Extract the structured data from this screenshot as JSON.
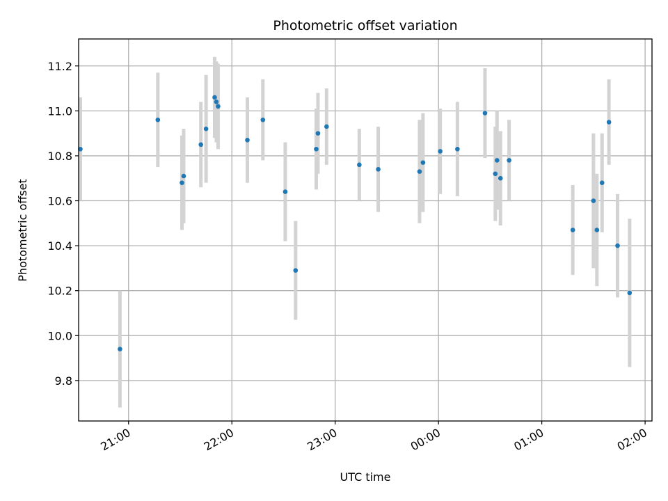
{
  "chart_data": {
    "type": "scatter",
    "title": "Photometric offset variation",
    "xlabel": "UTC time",
    "ylabel": "Photometric offset",
    "x_axis": "time",
    "x_ticks": [
      "21:00",
      "22:00",
      "23:00",
      "00:00",
      "01:00",
      "02:00"
    ],
    "y_ticks": [
      "9.8",
      "10.0",
      "10.2",
      "10.4",
      "10.6",
      "10.8",
      "11.0",
      "11.2"
    ],
    "xlim": [
      "20:31",
      "02:04"
    ],
    "ylim": [
      9.62,
      11.32
    ],
    "grid": true,
    "colors": {
      "marker": "#1f77b4",
      "error_bar": "#d3d3d3"
    },
    "series": [
      {
        "points": [
          {
            "x": "20:32",
            "y": 10.83,
            "err": 0.23
          },
          {
            "x": "20:55",
            "y": 9.94,
            "err": 0.26
          },
          {
            "x": "21:17",
            "y": 10.96,
            "err": 0.21
          },
          {
            "x": "21:31",
            "y": 10.68,
            "err": 0.21
          },
          {
            "x": "21:32",
            "y": 10.71,
            "err": 0.21
          },
          {
            "x": "21:42",
            "y": 10.85,
            "err": 0.19
          },
          {
            "x": "21:45",
            "y": 10.92,
            "err": 0.24
          },
          {
            "x": "21:50",
            "y": 11.06,
            "err": 0.18
          },
          {
            "x": "21:51",
            "y": 11.04,
            "err": 0.18
          },
          {
            "x": "21:52",
            "y": 11.02,
            "err": 0.19
          },
          {
            "x": "22:09",
            "y": 10.87,
            "err": 0.19
          },
          {
            "x": "22:18",
            "y": 10.96,
            "err": 0.18
          },
          {
            "x": "22:31",
            "y": 10.64,
            "err": 0.22
          },
          {
            "x": "22:37",
            "y": 10.29,
            "err": 0.22
          },
          {
            "x": "22:49",
            "y": 10.83,
            "err": 0.18
          },
          {
            "x": "22:50",
            "y": 10.9,
            "err": 0.18
          },
          {
            "x": "22:55",
            "y": 10.93,
            "err": 0.17
          },
          {
            "x": "23:14",
            "y": 10.76,
            "err": 0.16
          },
          {
            "x": "23:25",
            "y": 10.74,
            "err": 0.19
          },
          {
            "x": "23:49",
            "y": 10.73,
            "err": 0.23
          },
          {
            "x": "23:51",
            "y": 10.77,
            "err": 0.22
          },
          {
            "x": "00:01",
            "y": 10.82,
            "err": 0.19
          },
          {
            "x": "00:11",
            "y": 10.83,
            "err": 0.21
          },
          {
            "x": "00:27",
            "y": 10.99,
            "err": 0.2
          },
          {
            "x": "00:33",
            "y": 10.72,
            "err": 0.21
          },
          {
            "x": "00:34",
            "y": 10.78,
            "err": 0.22
          },
          {
            "x": "00:36",
            "y": 10.7,
            "err": 0.21
          },
          {
            "x": "00:41",
            "y": 10.78,
            "err": 0.18
          },
          {
            "x": "01:18",
            "y": 10.47,
            "err": 0.2
          },
          {
            "x": "01:30",
            "y": 10.6,
            "err": 0.3
          },
          {
            "x": "01:32",
            "y": 10.47,
            "err": 0.25
          },
          {
            "x": "01:35",
            "y": 10.68,
            "err": 0.22
          },
          {
            "x": "01:39",
            "y": 10.95,
            "err": 0.19
          },
          {
            "x": "01:44",
            "y": 10.4,
            "err": 0.23
          },
          {
            "x": "01:51",
            "y": 10.19,
            "err": 0.33
          }
        ]
      }
    ]
  }
}
